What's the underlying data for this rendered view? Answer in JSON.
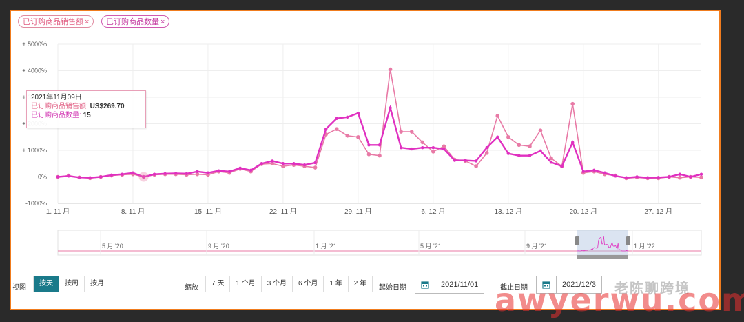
{
  "chips": [
    {
      "label": "已订购商品销售额",
      "close": "×"
    },
    {
      "label": "已订购商品数量",
      "close": "×"
    }
  ],
  "tooltip": {
    "date": "2021年11月09日",
    "row1_label": "已订购商品销售额:",
    "row1_value": "US$269.70",
    "row2_label": "已订购商品数量:",
    "row2_value": "15"
  },
  "controls": {
    "view_label": "视图",
    "view_options": [
      "按天",
      "按周",
      "按月"
    ],
    "view_active": 0,
    "zoom_label": "缩放",
    "zoom_options": [
      "7 天",
      "1 个月",
      "3 个月",
      "6 个月",
      "1 年",
      "2 年"
    ],
    "start_label": "起始日期",
    "start_value": "2021/11/01",
    "end_label": "截止日期",
    "end_value": "2021/12/3",
    "calendar_icon": "calendar-icon"
  },
  "watermark": {
    "top_text": "老陈聊跨境",
    "bottom_text": "awyerwu.com"
  },
  "colors": {
    "series1": "#e87aa6",
    "series2": "#e030c0",
    "frame": "#f07c1e",
    "active_button": "#1a7a8a"
  },
  "chart_data": {
    "type": "line",
    "ylim": [
      -1000,
      5000
    ],
    "y_ticks": [
      "+ 5000%",
      "+ 4000%",
      "+ 3000%",
      "+ 2000%",
      "+ 1000%",
      "0%",
      "-1000%"
    ],
    "x_ticks": [
      "1. 11 月",
      "8. 11 月",
      "15. 11 月",
      "22. 11 月",
      "29. 11 月",
      "6. 12 月",
      "13. 12 月",
      "20. 12 月",
      "27. 12 月"
    ],
    "x": [
      "2021-11-01",
      "2021-11-02",
      "2021-11-03",
      "2021-11-04",
      "2021-11-05",
      "2021-11-06",
      "2021-11-07",
      "2021-11-08",
      "2021-11-09",
      "2021-11-10",
      "2021-11-11",
      "2021-11-12",
      "2021-11-13",
      "2021-11-14",
      "2021-11-15",
      "2021-11-16",
      "2021-11-17",
      "2021-11-18",
      "2021-11-19",
      "2021-11-20",
      "2021-11-21",
      "2021-11-22",
      "2021-11-23",
      "2021-11-24",
      "2021-11-25",
      "2021-11-26",
      "2021-11-27",
      "2021-11-28",
      "2021-11-29",
      "2021-11-30",
      "2021-12-01",
      "2021-12-02",
      "2021-12-03",
      "2021-12-04",
      "2021-12-05",
      "2021-12-06",
      "2021-12-07",
      "2021-12-08",
      "2021-12-09",
      "2021-12-10",
      "2021-12-11",
      "2021-12-12",
      "2021-12-13",
      "2021-12-14",
      "2021-12-15",
      "2021-12-16",
      "2021-12-17",
      "2021-12-18",
      "2021-12-19",
      "2021-12-20",
      "2021-12-21",
      "2021-12-22",
      "2021-12-23",
      "2021-12-24",
      "2021-12-25",
      "2021-12-26",
      "2021-12-27",
      "2021-12-28",
      "2021-12-29",
      "2021-12-30",
      "2021-12-31"
    ],
    "series": [
      {
        "name": "已订购商品销售额",
        "values": [
          0,
          50,
          -20,
          -50,
          0,
          50,
          80,
          100,
          0,
          80,
          100,
          100,
          80,
          100,
          80,
          200,
          150,
          300,
          200,
          480,
          500,
          400,
          450,
          400,
          350,
          1600,
          1800,
          1550,
          1500,
          850,
          800,
          4050,
          1700,
          1700,
          1300,
          950,
          1150,
          650,
          600,
          400,
          900,
          2300,
          1500,
          1200,
          1150,
          1750,
          700,
          400,
          2750,
          150,
          200,
          100,
          50,
          -50,
          -20,
          -50,
          -50,
          0,
          -30,
          0,
          -20
        ],
        "color": "#e87aa6"
      },
      {
        "name": "已订购商品数量",
        "values": [
          0,
          30,
          -20,
          -30,
          0,
          70,
          100,
          150,
          0,
          100,
          120,
          130,
          120,
          200,
          150,
          230,
          200,
          330,
          250,
          500,
          600,
          500,
          500,
          450,
          530,
          1800,
          2200,
          2250,
          2400,
          1200,
          1200,
          2600,
          1100,
          1050,
          1100,
          1100,
          1050,
          620,
          620,
          600,
          1100,
          1500,
          880,
          800,
          800,
          980,
          550,
          400,
          1300,
          200,
          250,
          150,
          30,
          -30,
          0,
          -30,
          -20,
          0,
          100,
          0,
          100
        ],
        "color": "#e030c0"
      }
    ],
    "highlight_index": 8,
    "navigator_ticks": [
      "5 月 '20",
      "9 月 '20",
      "1 月 '21",
      "5 月 '21",
      "9 月 '21",
      "1 月 '22"
    ]
  }
}
